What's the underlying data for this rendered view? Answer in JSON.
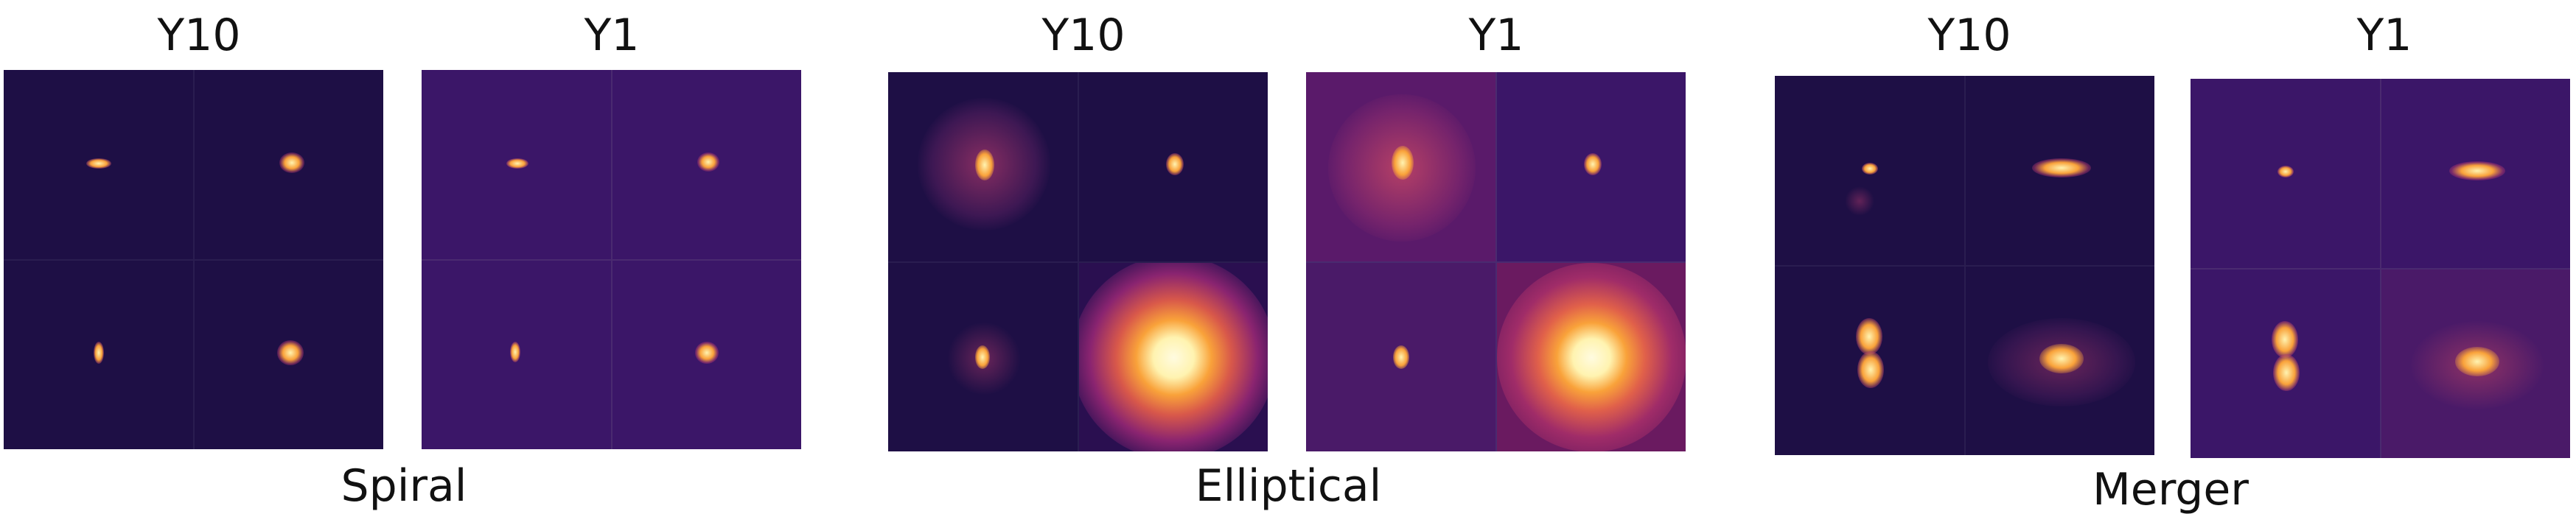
{
  "figure": {
    "groups": [
      {
        "category": "Spiral",
        "panels": [
          {
            "label": "Y10",
            "noise": "low"
          },
          {
            "label": "Y1",
            "noise": "high"
          }
        ]
      },
      {
        "category": "Elliptical",
        "panels": [
          {
            "label": "Y10",
            "noise": "low"
          },
          {
            "label": "Y1",
            "noise": "high"
          }
        ]
      },
      {
        "category": "Merger",
        "panels": [
          {
            "label": "Y10",
            "noise": "low"
          },
          {
            "label": "Y1",
            "noise": "high"
          }
        ]
      }
    ],
    "colors": {
      "background_low_noise": "#1e0f45",
      "background_high_noise": "#3b1668",
      "core": "#fff3b0",
      "glow": "#f9a23a",
      "halo": "#b43a6e"
    }
  }
}
